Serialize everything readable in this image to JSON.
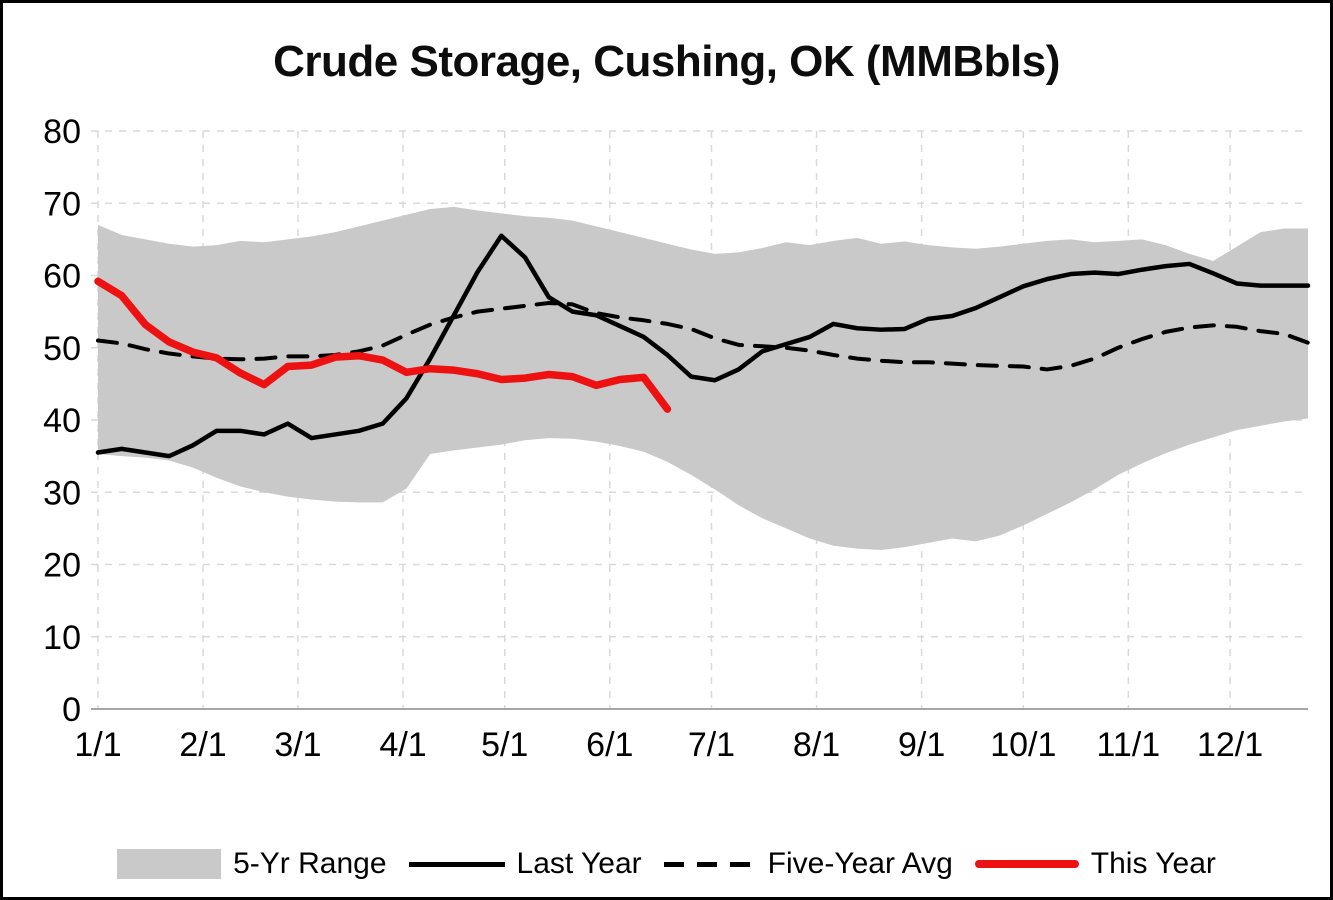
{
  "page": {
    "title": "Crude Storage, Cushing, OK (MMBbls)"
  },
  "chart_data": {
    "type": "line",
    "title": "Crude Storage, Cushing, OK (MMBbls)",
    "ylabel": "",
    "xlabel": "",
    "ylim": [
      0,
      80
    ],
    "y_ticks": [
      0,
      10,
      20,
      30,
      40,
      50,
      60,
      70,
      80
    ],
    "x_unit": "day_of_year",
    "x_max_day": 357,
    "week_days": 7,
    "grid": "dashed",
    "legend_position": "bottom",
    "x_ticks": [
      {
        "label": "1/1",
        "day": 0
      },
      {
        "label": "2/1",
        "day": 31
      },
      {
        "label": "3/1",
        "day": 59
      },
      {
        "label": "4/1",
        "day": 90
      },
      {
        "label": "5/1",
        "day": 120
      },
      {
        "label": "6/1",
        "day": 151
      },
      {
        "label": "7/1",
        "day": 181
      },
      {
        "label": "8/1",
        "day": 212
      },
      {
        "label": "9/1",
        "day": 243
      },
      {
        "label": "10/1",
        "day": 273
      },
      {
        "label": "11/1",
        "day": 304
      },
      {
        "label": "12/1",
        "day": 334
      }
    ],
    "colors": {
      "band": "#c9c9c9",
      "grid": "#d9d9d9",
      "axis": "#a6a6a6",
      "black": "#000000",
      "red": "#ee1111"
    },
    "series": [
      {
        "id": "five-year-range",
        "name": "5-Yr Range",
        "type": "band",
        "color": "#c9c9c9",
        "max": [
          67.0,
          65.6,
          65.0,
          64.4,
          64.0,
          64.2,
          64.8,
          64.6,
          65.0,
          65.4,
          66.0,
          66.8,
          67.6,
          68.4,
          69.2,
          69.5,
          69.0,
          68.6,
          68.2,
          68.0,
          67.6,
          66.8,
          66.0,
          65.2,
          64.4,
          63.6,
          63.0,
          63.2,
          63.8,
          64.6,
          64.2,
          64.8,
          65.2,
          64.4,
          64.7,
          64.2,
          63.9,
          63.7,
          64.0,
          64.4,
          64.8,
          65.0,
          64.6,
          64.8,
          65.0,
          64.2,
          63.0,
          62.0,
          64.0,
          66.0,
          66.5,
          66.5
        ],
        "min": [
          35.3,
          35.0,
          34.8,
          34.4,
          33.4,
          32.0,
          30.8,
          30.0,
          29.4,
          29.0,
          28.7,
          28.6,
          28.6,
          30.5,
          35.3,
          35.8,
          36.2,
          36.6,
          37.2,
          37.5,
          37.4,
          37.0,
          36.4,
          35.6,
          34.2,
          32.4,
          30.4,
          28.2,
          26.4,
          25.0,
          23.6,
          22.6,
          22.2,
          22.0,
          22.4,
          23.0,
          23.6,
          23.2,
          24.0,
          25.4,
          27.0,
          28.6,
          30.4,
          32.4,
          34.0,
          35.4,
          36.6,
          37.6,
          38.6,
          39.2,
          39.8,
          40.2
        ]
      },
      {
        "id": "last-year",
        "name": "Last Year",
        "type": "line",
        "style": "solid",
        "color": "#000000",
        "width": 4.5,
        "values": [
          35.5,
          36.0,
          35.5,
          35.0,
          36.5,
          38.5,
          38.5,
          38.0,
          39.5,
          37.5,
          38.0,
          38.5,
          39.5,
          43.0,
          48.5,
          54.5,
          60.5,
          65.5,
          62.5,
          57.0,
          55.0,
          54.5,
          53.0,
          51.5,
          49.0,
          46.0,
          45.5,
          47.0,
          49.5,
          50.5,
          51.5,
          53.3,
          52.7,
          52.5,
          52.6,
          54.0,
          54.4,
          55.5,
          57.0,
          58.5,
          59.5,
          60.2,
          60.4,
          60.2,
          60.8,
          61.3,
          61.6,
          60.3,
          58.9,
          58.6,
          58.6,
          58.6
        ]
      },
      {
        "id": "five-year-avg",
        "name": "Five-Year Avg",
        "type": "line",
        "style": "dashed",
        "color": "#000000",
        "width": 4,
        "values": [
          51.0,
          50.6,
          49.8,
          49.2,
          48.8,
          48.5,
          48.4,
          48.5,
          48.8,
          48.8,
          49.0,
          49.5,
          50.3,
          51.8,
          53.2,
          54.2,
          55.0,
          55.4,
          55.8,
          56.2,
          56.0,
          54.8,
          54.2,
          53.8,
          53.3,
          52.6,
          51.3,
          50.4,
          50.2,
          50.0,
          49.6,
          49.0,
          48.5,
          48.2,
          48.0,
          48.0,
          47.8,
          47.6,
          47.5,
          47.4,
          47.0,
          47.5,
          48.5,
          50.0,
          51.2,
          52.2,
          52.8,
          53.1,
          52.9,
          52.3,
          51.9,
          50.7
        ]
      },
      {
        "id": "this-year",
        "name": "This Year",
        "type": "line",
        "style": "solid",
        "color": "#ee1111",
        "width": 7.5,
        "values": [
          59.2,
          57.2,
          53.2,
          50.8,
          49.4,
          48.6,
          46.5,
          44.9,
          47.4,
          47.6,
          48.7,
          48.9,
          48.3,
          46.6,
          47.1,
          46.9,
          46.4,
          45.6,
          45.8,
          46.3,
          46.0,
          44.8,
          45.6,
          45.9,
          41.5
        ]
      }
    ]
  }
}
